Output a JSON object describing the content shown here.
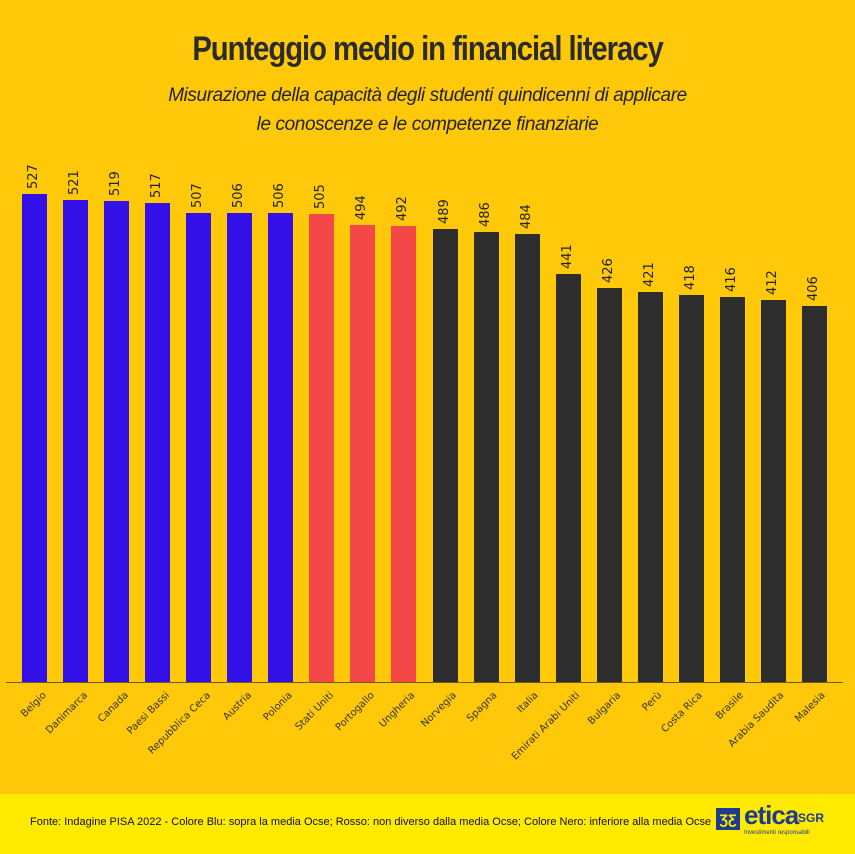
{
  "header": {
    "title": "Punteggio medio in financial literacy",
    "subtitle_line1": "Misurazione della capacità degli studenti quindicenni di applicare",
    "subtitle_line2": "le conoscenze e le competenze finanziarie"
  },
  "footer": {
    "source": "Fonte: Indagine PISA 2022 - Colore Blu: sopra la media Ocse; Rosso: non diverso dalla media Ocse; Colore Nero: inferiore alla media Ocse",
    "logo": {
      "mark": "ƷƸ",
      "name": "etica",
      "suffix": "SGR",
      "tagline": "Investimenti responsabili"
    }
  },
  "colors": {
    "background": "#FFC90A",
    "footer_background": "#FFEA00",
    "above_average": "#3410E8",
    "not_different": "#F44848",
    "below_average": "#2D2D2D"
  },
  "chart_data": {
    "type": "bar",
    "title": "Punteggio medio in financial literacy",
    "subtitle": "Misurazione della capacità degli studenti quindicenni di applicare le conoscenze e le competenze finanziarie",
    "xlabel": "",
    "ylabel": "",
    "ylim": [
      0,
      527
    ],
    "grid": false,
    "legend": "none (colors explained in footer)",
    "categories": [
      "Belgio",
      "Danimarca",
      "Canada",
      "Paesi Bassi",
      "Repubblica Ceca",
      "Austria",
      "Polonia",
      "Stati Uniti",
      "Portogallo",
      "Ungheria",
      "Norvegia",
      "Spagna",
      "Italia",
      "Emirati Arabi Uniti",
      "Bulgaria",
      "Perù",
      "Costa Rica",
      "Brasile",
      "Arabia Saudita",
      "Malesia"
    ],
    "values": [
      527,
      521,
      519,
      517,
      507,
      506,
      506,
      505,
      494,
      492,
      489,
      486,
      484,
      441,
      426,
      421,
      418,
      416,
      412,
      406
    ],
    "groups": [
      "above",
      "above",
      "above",
      "above",
      "above",
      "above",
      "above",
      "equal",
      "equal",
      "equal",
      "below",
      "below",
      "below",
      "below",
      "below",
      "below",
      "below",
      "below",
      "below",
      "below"
    ],
    "group_labels": {
      "above": "Colore Blu: sopra la media Ocse",
      "equal": "Rosso: non diverso dalla media Ocse",
      "below": "Colore Nero: inferiore alla media Ocse"
    }
  }
}
